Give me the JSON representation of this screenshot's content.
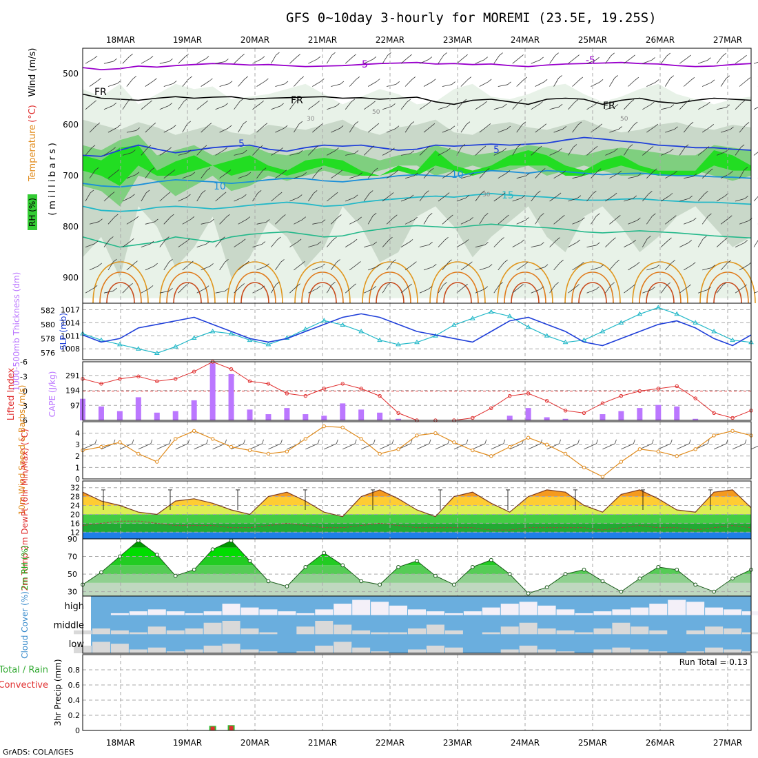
{
  "title": "GFS 0~10day 3-hourly for MOREMI (23.5E, 19.25S)",
  "credit": "GrADS: COLA/IGES",
  "date_labels": [
    "18MAR",
    "19MAR",
    "20MAR",
    "21MAR",
    "22MAR",
    "23MAR",
    "24MAR",
    "25MAR",
    "26MAR",
    "27MAR"
  ],
  "colors": {
    "rh_green": "#33cc33",
    "rh_bright": "#00ff00",
    "purple": "#9900cc",
    "blue": "#1f3fd9",
    "teal": "#22b8c8",
    "orange": "#e08a1a",
    "red": "#e03030",
    "cape": "#bb77ff",
    "cloud_sky": "#6aaede",
    "cloud_fill": "#d9d9d9"
  },
  "chart_data": [
    {
      "type": "heatmap",
      "panel": "upper-air",
      "ylabel_parts": [
        "RH (%)",
        "Temperature",
        "(°C)",
        "Wind (m/s)",
        "(millibars)"
      ],
      "y_ticks": [
        500,
        600,
        700,
        800,
        900
      ],
      "ylim": [
        450,
        950
      ],
      "contour_labels": [
        "-5",
        "-5",
        "FR",
        "FR",
        "FR",
        "5",
        "5",
        "10",
        "10",
        "15",
        "30",
        "50",
        "50",
        "30"
      ],
      "isotherms": [
        {
          "name": "-5",
          "level": [
            488,
            492,
            490,
            485,
            487,
            484,
            482,
            480,
            481,
            483,
            482,
            484,
            486,
            485,
            484,
            482,
            480,
            479,
            478,
            481,
            480,
            482,
            481,
            484,
            486,
            483,
            481,
            480,
            479,
            478,
            480,
            481,
            484,
            486,
            485,
            482,
            480
          ]
        },
        {
          "name": "FR",
          "level": [
            540,
            548,
            550,
            552,
            548,
            545,
            548,
            546,
            545,
            550,
            548,
            547,
            546,
            545,
            548,
            547,
            550,
            548,
            546,
            555,
            560,
            552,
            550,
            555,
            560,
            550,
            548,
            550,
            560,
            552,
            548,
            555,
            558,
            552,
            548,
            550,
            552
          ]
        },
        {
          "name": "5",
          "level": [
            660,
            662,
            650,
            640,
            648,
            655,
            650,
            645,
            642,
            640,
            648,
            652,
            645,
            640,
            642,
            640,
            645,
            650,
            648,
            640,
            642,
            640,
            638,
            640,
            638,
            636,
            630,
            625,
            628,
            632,
            635,
            640,
            642,
            645,
            645,
            648,
            650
          ]
        },
        {
          "name": "10",
          "level": [
            715,
            720,
            722,
            718,
            712,
            708,
            710,
            712,
            715,
            712,
            708,
            705,
            706,
            710,
            712,
            708,
            705,
            700,
            698,
            700,
            702,
            695,
            690,
            692,
            695,
            690,
            692,
            695,
            698,
            696,
            695,
            698,
            700,
            700,
            702,
            703,
            705
          ]
        },
        {
          "name": "15",
          "level": [
            760,
            768,
            770,
            768,
            762,
            760,
            762,
            765,
            762,
            758,
            755,
            752,
            755,
            760,
            758,
            752,
            748,
            745,
            742,
            740,
            742,
            738,
            735,
            738,
            740,
            742,
            745,
            748,
            748,
            746,
            745,
            748,
            750,
            752,
            752,
            754,
            756
          ]
        }
      ]
    },
    {
      "type": "line",
      "panel": "thickness-slp",
      "ylabel_left": "1000-500mb Thickness (dm)",
      "ylabel_right": "SLP (mb)",
      "y_ticks_left": [
        576,
        578,
        580,
        582
      ],
      "y_ticks_right": [
        1008,
        1011,
        1014,
        1017
      ],
      "ylim_left": [
        575,
        583
      ],
      "ylim_right": [
        1005.5,
        1018.5
      ],
      "series": [
        {
          "name": "1000-500mb Thickness",
          "values": [
            578.5,
            577.5,
            578.0,
            579.5,
            580.0,
            580.5,
            581.0,
            580.0,
            579.0,
            578.0,
            577.5,
            578.0,
            579.0,
            580.0,
            581.0,
            581.5,
            581.0,
            580.0,
            579.0,
            578.5,
            578.0,
            577.5,
            579.0,
            580.5,
            581.0,
            580.0,
            579.0,
            577.5,
            577.0,
            578.0,
            579.0,
            580.0,
            580.5,
            579.5,
            578.0,
            577.0,
            578.5
          ]
        },
        {
          "name": "SLP",
          "values": [
            1011.5,
            1010.0,
            1009.0,
            1008.0,
            1007.0,
            1008.5,
            1010.5,
            1012.0,
            1011.5,
            1010.0,
            1009.0,
            1010.5,
            1012.5,
            1014.5,
            1013.5,
            1012.0,
            1010.0,
            1009.0,
            1009.5,
            1011.0,
            1013.5,
            1015.0,
            1016.5,
            1015.5,
            1013.0,
            1011.0,
            1009.5,
            1010.0,
            1012.0,
            1014.0,
            1016.0,
            1017.5,
            1016.0,
            1014.0,
            1012.0,
            1010.0,
            1009.5
          ]
        }
      ]
    },
    {
      "type": "bar",
      "panel": "cape-li",
      "ylabel_left": "Lifted Index",
      "ylabel_right": "CAPE (J/kg)",
      "y_ticks_left": [
        -6,
        -3,
        0,
        3,
        6
      ],
      "y_ticks_right": [
        97,
        194,
        291
      ],
      "ylim_left": [
        -6,
        6
      ],
      "series": [
        {
          "name": "CAPE",
          "values": [
            140,
            90,
            60,
            150,
            50,
            60,
            130,
            370,
            300,
            70,
            40,
            80,
            40,
            30,
            110,
            70,
            50,
            10,
            0,
            0,
            0,
            0,
            0,
            30,
            80,
            20,
            10,
            0,
            40,
            60,
            80,
            100,
            90,
            10,
            0,
            0,
            0
          ]
        },
        {
          "name": "Lifted Index",
          "values": [
            -2.5,
            -1.5,
            -2.5,
            -3.0,
            -2.0,
            -2.5,
            -4.0,
            -6.0,
            -4.5,
            -2.0,
            -1.5,
            0.5,
            1.0,
            -0.5,
            -1.5,
            -0.5,
            1.0,
            4.5,
            6.0,
            6.0,
            6.0,
            5.5,
            3.5,
            1.0,
            0.5,
            2.0,
            4.0,
            4.5,
            2.5,
            1.0,
            0.0,
            -0.5,
            -1.0,
            1.5,
            4.5,
            5.5,
            4.0
          ]
        }
      ]
    },
    {
      "type": "line",
      "panel": "wind",
      "ylabel": "10m Wind Speed & Barbs (m/s)",
      "y_ticks": [
        0,
        1,
        2,
        3,
        4
      ],
      "ylim": [
        0,
        5
      ],
      "series": [
        {
          "name": "Speed",
          "values": [
            2.5,
            2.8,
            3.2,
            2.2,
            1.5,
            3.5,
            4.2,
            3.5,
            2.8,
            2.5,
            2.2,
            2.4,
            3.5,
            4.6,
            4.5,
            3.5,
            2.2,
            2.6,
            3.8,
            4.0,
            3.2,
            2.5,
            2.0,
            2.8,
            3.6,
            3.0,
            2.2,
            1.0,
            0.2,
            1.5,
            2.6,
            2.4,
            2.0,
            2.6,
            3.8,
            4.2,
            3.8
          ]
        }
      ]
    },
    {
      "type": "area",
      "panel": "temp",
      "ylabel": "2m Temp 2m DewPt (6hr Min/Max) (°C)",
      "y_ticks": [
        12,
        16,
        20,
        24,
        28,
        32
      ],
      "ylim": [
        9,
        35
      ],
      "series": [
        {
          "name": "2m Temp",
          "values": [
            30,
            26,
            24,
            21,
            20,
            26,
            27,
            25,
            22,
            20,
            28,
            30,
            26,
            21,
            19,
            28,
            31,
            27,
            22,
            19,
            28,
            30,
            25,
            21,
            28,
            31,
            30,
            24,
            21,
            29,
            31,
            27,
            22,
            21,
            30,
            31,
            23
          ]
        },
        {
          "name": "2m DewPt",
          "values": [
            15,
            16,
            17,
            17,
            16,
            15,
            15,
            15,
            14,
            14,
            15,
            16,
            15,
            14,
            14,
            15,
            16,
            15,
            14,
            14,
            14,
            14,
            13,
            13,
            14,
            14,
            14,
            14,
            13,
            14,
            15,
            14,
            14,
            13,
            14,
            15,
            14
          ]
        }
      ]
    },
    {
      "type": "area",
      "panel": "rh",
      "ylabel": "2m RH (%)",
      "y_ticks": [
        30,
        50,
        70,
        90
      ],
      "ylim": [
        25,
        90
      ],
      "series": [
        {
          "name": "2m RH",
          "values": [
            38,
            52,
            70,
            88,
            72,
            48,
            55,
            78,
            88,
            65,
            42,
            36,
            58,
            74,
            60,
            42,
            38,
            58,
            65,
            48,
            38,
            58,
            66,
            50,
            28,
            35,
            50,
            55,
            42,
            30,
            45,
            58,
            55,
            38,
            30,
            45,
            55
          ]
        }
      ]
    },
    {
      "type": "heatmap",
      "panel": "cloud",
      "ylabel": "Cloud Cover (%)",
      "rows": [
        "high",
        "middle",
        "low"
      ],
      "values_high": [
        0,
        0,
        10,
        20,
        30,
        20,
        10,
        20,
        60,
        40,
        30,
        20,
        10,
        30,
        60,
        80,
        70,
        50,
        30,
        20,
        10,
        20,
        40,
        60,
        70,
        50,
        30,
        10,
        20,
        30,
        40,
        60,
        80,
        70,
        40,
        30,
        20
      ],
      "values_middle": [
        20,
        30,
        20,
        10,
        40,
        20,
        30,
        60,
        70,
        30,
        10,
        0,
        40,
        70,
        50,
        20,
        10,
        10,
        30,
        50,
        20,
        0,
        10,
        40,
        60,
        30,
        20,
        10,
        30,
        60,
        40,
        20,
        0,
        20,
        40,
        30,
        10
      ],
      "values_low": [
        40,
        60,
        50,
        20,
        30,
        10,
        20,
        40,
        50,
        20,
        10,
        0,
        10,
        40,
        60,
        30,
        10,
        0,
        20,
        40,
        30,
        0,
        0,
        20,
        40,
        20,
        10,
        0,
        20,
        30,
        20,
        10,
        0,
        10,
        30,
        20,
        10
      ]
    },
    {
      "type": "bar",
      "panel": "precip",
      "ylabel": "3hr Precip (mm)",
      "legend_text": [
        "Total / Rain",
        "Convective"
      ],
      "run_total": "Run Total = 0.13",
      "y_ticks": [
        0,
        0.2,
        0.4,
        0.6,
        0.8
      ],
      "ylim": [
        0,
        1.0
      ],
      "series": [
        {
          "name": "Total / Rain",
          "values": [
            0,
            0,
            0,
            0,
            0,
            0,
            0,
            0.06,
            0.07,
            0,
            0,
            0,
            0,
            0,
            0,
            0,
            0,
            0,
            0,
            0,
            0,
            0,
            0,
            0,
            0,
            0,
            0,
            0,
            0,
            0,
            0,
            0,
            0,
            0,
            0,
            0,
            0
          ]
        },
        {
          "name": "Convective",
          "values": [
            0,
            0,
            0,
            0,
            0,
            0,
            0,
            0.05,
            0.06,
            0,
            0,
            0,
            0,
            0,
            0,
            0,
            0,
            0,
            0,
            0,
            0,
            0,
            0,
            0,
            0,
            0,
            0,
            0,
            0,
            0,
            0,
            0,
            0,
            0,
            0,
            0,
            0
          ]
        }
      ]
    }
  ]
}
